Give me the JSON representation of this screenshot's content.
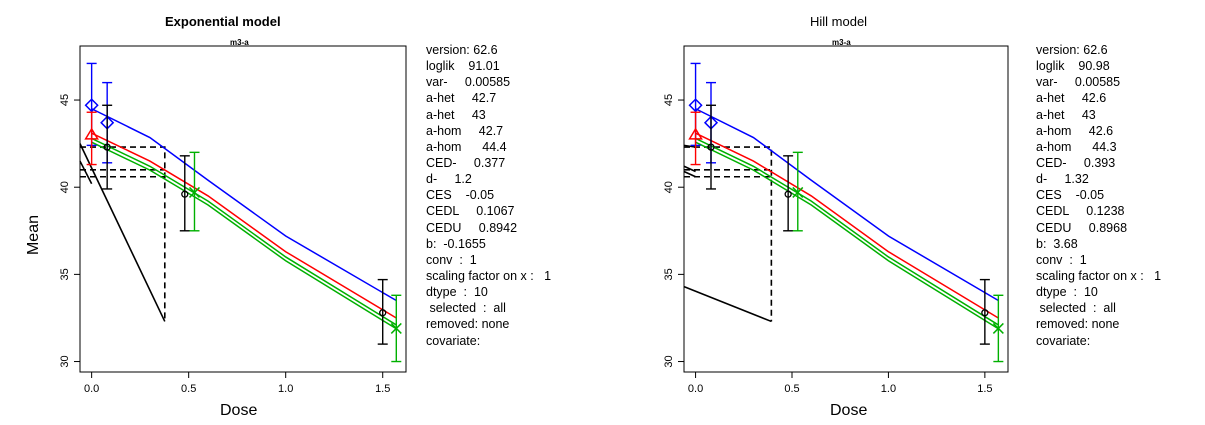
{
  "chart_data": [
    {
      "type": "line",
      "title": "Exponential model",
      "subtitle": "m3-a",
      "xlabel": "Dose",
      "ylabel": "Mean",
      "xlim": [
        -0.06,
        1.62
      ],
      "ylim": [
        29.4,
        48.1
      ],
      "xticks": [
        "0.0",
        "0.5",
        "1.0",
        "1.5"
      ],
      "yticks": [
        "30",
        "35",
        "40",
        "45"
      ],
      "series": [
        {
          "color": "#0000ff",
          "marker": "diamond",
          "points": [
            {
              "x": 0.0,
              "y": 44.7,
              "lo": 42.4,
              "hi": 47.1
            },
            {
              "x": 0.08,
              "y": 43.7,
              "lo": 41.4,
              "hi": 46.0
            }
          ],
          "curve": [
            [
              0.0,
              44.5
            ],
            [
              0.3,
              42.85
            ],
            [
              0.6,
              40.4
            ],
            [
              1.0,
              37.2
            ],
            [
              1.57,
              33.5
            ]
          ]
        },
        {
          "color": "#ff0000",
          "marker": "triangle",
          "points": [
            {
              "x": 0.0,
              "y": 43.0,
              "lo": 41.3,
              "hi": 44.3
            }
          ],
          "curve": [
            [
              0.0,
              43.1
            ],
            [
              0.3,
              41.5
            ],
            [
              0.6,
              39.5
            ],
            [
              1.0,
              36.3
            ],
            [
              1.57,
              32.5
            ]
          ]
        },
        {
          "color": "#000000",
          "marker": "circle",
          "points": [
            {
              "x": 0.08,
              "y": 42.3,
              "lo": 39.9,
              "hi": 44.7
            },
            {
              "x": 0.48,
              "y": 39.6,
              "lo": 37.5,
              "hi": 41.8
            },
            {
              "x": 1.5,
              "y": 32.8,
              "lo": 31.0,
              "hi": 34.7
            }
          ],
          "curve": []
        },
        {
          "color": "#00b000",
          "marker": "x",
          "points": [
            {
              "x": 0.53,
              "y": 39.7,
              "lo": 37.5,
              "hi": 42.0
            },
            {
              "x": 1.57,
              "y": 31.9,
              "lo": 30.0,
              "hi": 33.8
            }
          ],
          "curve": [
            [
              0.0,
              42.8
            ],
            [
              0.3,
              41.2
            ],
            [
              0.6,
              39.2
            ],
            [
              1.0,
              36.0
            ],
            [
              1.57,
              32.1
            ]
          ]
        }
      ],
      "ced_lines": [
        {
          "style": "dashed",
          "points": [
            [
              -0.06,
              42.3
            ],
            [
              0.377,
              42.3
            ],
            [
              0.377,
              32.3
            ]
          ]
        },
        {
          "style": "dashed",
          "points": [
            [
              -0.06,
              40.6
            ],
            [
              0.377,
              40.6
            ]
          ]
        },
        {
          "style": "dashed",
          "points": [
            [
              -0.06,
              41.0
            ],
            [
              0.377,
              41.0
            ]
          ]
        },
        {
          "style": "solid",
          "points": [
            [
              -0.06,
              42.5
            ],
            [
              0.377,
              32.3
            ]
          ]
        },
        {
          "style": "solid",
          "points": [
            [
              -0.06,
              41.5
            ],
            [
              0.0,
              40.2
            ]
          ]
        }
      ],
      "info_lines": [
        "version: 62.6",
        "loglik    91.01",
        "var-     0.00585",
        "a-het     42.7",
        "a-het     43",
        "a-hom     42.7",
        "a-hom      44.4",
        "CED-     0.377",
        "d-     1.2",
        "CES    -0.05",
        "CEDL     0.1067",
        "CEDU     0.8942",
        "b:  -0.1655",
        "conv  :  1",
        "scaling factor on x :   1",
        "dtype  :  10",
        " selected  :  all",
        "removed: none",
        "covariate:"
      ]
    },
    {
      "type": "line",
      "title": "Hill model",
      "subtitle": "m3-a",
      "xlabel": "Dose",
      "ylabel": "",
      "xlim": [
        -0.06,
        1.62
      ],
      "ylim": [
        29.4,
        48.1
      ],
      "xticks": [
        "0.0",
        "0.5",
        "1.0",
        "1.5"
      ],
      "yticks": [
        "30",
        "35",
        "40",
        "45"
      ],
      "series": [
        {
          "color": "#0000ff",
          "marker": "diamond",
          "points": [
            {
              "x": 0.0,
              "y": 44.7,
              "lo": 42.4,
              "hi": 47.1
            },
            {
              "x": 0.08,
              "y": 43.7,
              "lo": 41.4,
              "hi": 46.0
            }
          ],
          "curve": [
            [
              0.0,
              44.5
            ],
            [
              0.3,
              42.85
            ],
            [
              0.6,
              40.4
            ],
            [
              1.0,
              37.2
            ],
            [
              1.57,
              33.5
            ]
          ]
        },
        {
          "color": "#ff0000",
          "marker": "triangle",
          "points": [
            {
              "x": 0.0,
              "y": 43.0,
              "lo": 41.3,
              "hi": 44.3
            }
          ],
          "curve": [
            [
              0.0,
              43.1
            ],
            [
              0.3,
              41.5
            ],
            [
              0.6,
              39.5
            ],
            [
              1.0,
              36.3
            ],
            [
              1.57,
              32.5
            ]
          ]
        },
        {
          "color": "#000000",
          "marker": "circle",
          "points": [
            {
              "x": 0.08,
              "y": 42.3,
              "lo": 39.9,
              "hi": 44.7
            },
            {
              "x": 0.48,
              "y": 39.6,
              "lo": 37.5,
              "hi": 41.8
            },
            {
              "x": 1.5,
              "y": 32.8,
              "lo": 31.0,
              "hi": 34.7
            }
          ],
          "curve": []
        },
        {
          "color": "#00b000",
          "marker": "x",
          "points": [
            {
              "x": 0.53,
              "y": 39.7,
              "lo": 37.5,
              "hi": 42.0
            },
            {
              "x": 1.57,
              "y": 31.9,
              "lo": 30.0,
              "hi": 33.8
            }
          ],
          "curve": [
            [
              0.0,
              42.8
            ],
            [
              0.3,
              41.2
            ],
            [
              0.6,
              39.2
            ],
            [
              1.0,
              36.0
            ],
            [
              1.57,
              32.1
            ]
          ]
        }
      ],
      "ced_lines": [
        {
          "style": "dashed",
          "points": [
            [
              -0.06,
              42.3
            ],
            [
              0.393,
              42.3
            ],
            [
              0.393,
              32.3
            ]
          ]
        },
        {
          "style": "dashed",
          "points": [
            [
              -0.06,
              40.6
            ],
            [
              0.393,
              40.6
            ]
          ]
        },
        {
          "style": "dashed",
          "points": [
            [
              -0.06,
              41.0
            ],
            [
              0.393,
              41.0
            ]
          ]
        },
        {
          "style": "solid",
          "points": [
            [
              -0.06,
              34.3
            ],
            [
              0.393,
              32.3
            ]
          ]
        },
        {
          "style": "solid",
          "points": [
            [
              -0.06,
              41.2
            ],
            [
              0.0,
              40.9
            ]
          ]
        },
        {
          "style": "solid",
          "points": [
            [
              -0.06,
              40.9
            ],
            [
              0.0,
              40.6
            ]
          ]
        },
        {
          "style": "solid",
          "points": [
            [
              -0.06,
              42.4
            ],
            [
              0.0,
              42.3
            ]
          ]
        }
      ],
      "info_lines": [
        "version: 62.6",
        "loglik    90.98",
        "var-     0.00585",
        "a-het     42.6",
        "a-het     43",
        "a-hom     42.6",
        "a-hom      44.3",
        "CED-     0.393",
        "d-     1.32",
        "CES    -0.05",
        "CEDL     0.1238",
        "CEDU     0.8968",
        "b:  3.68",
        "conv  :  1",
        "scaling factor on x :   1",
        "dtype  :  10",
        " selected  :  all",
        "removed: none",
        "covariate:"
      ]
    }
  ]
}
